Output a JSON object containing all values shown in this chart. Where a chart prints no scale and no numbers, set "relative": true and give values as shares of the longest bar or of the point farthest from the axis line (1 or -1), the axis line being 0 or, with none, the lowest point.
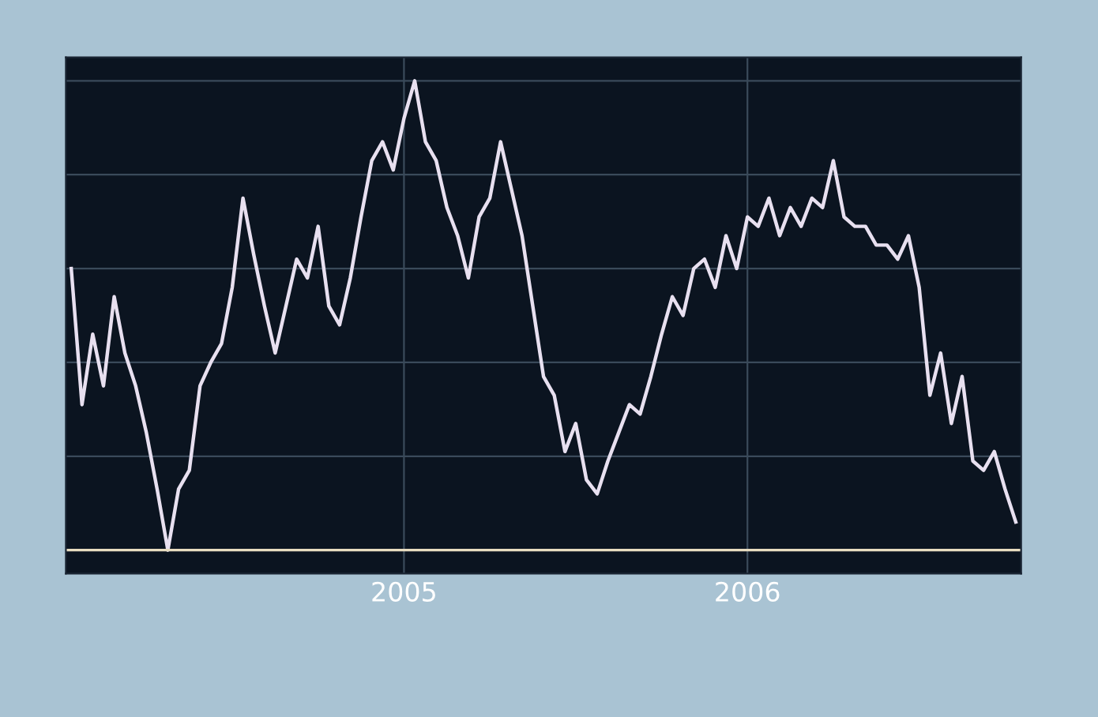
{
  "chart_data": {
    "type": "line",
    "relative": true,
    "grid": true,
    "categories": [
      null,
      null,
      null,
      null,
      null,
      null,
      null,
      null,
      null,
      null,
      null,
      null,
      null,
      null,
      null,
      null,
      null,
      null,
      null,
      null,
      null,
      null,
      null,
      null,
      null,
      null,
      null,
      null,
      null,
      null,
      null,
      "2005",
      null,
      null,
      null,
      null,
      null,
      null,
      null,
      null,
      null,
      null,
      null,
      null,
      null,
      null,
      null,
      null,
      null,
      null,
      null,
      null,
      null,
      null,
      null,
      null,
      null,
      null,
      null,
      null,
      null,
      null,
      null,
      "2006",
      null,
      null,
      null,
      null,
      null,
      null,
      null,
      null,
      null,
      null,
      null,
      null,
      null,
      null,
      null,
      null,
      null,
      null,
      null,
      null,
      null,
      null,
      null,
      null,
      null
    ],
    "series": [
      {
        "color": "#e8e0f0",
        "values": [
          0.6,
          0.31,
          0.46,
          0.35,
          0.54,
          0.42,
          0.35,
          0.25,
          0.13,
          0,
          0.13,
          0.17,
          0.35,
          0.4,
          0.44,
          0.56,
          0.75,
          0.63,
          0.52,
          0.42,
          0.52,
          0.62,
          0.58,
          0.69,
          0.52,
          0.48,
          0.58,
          0.71,
          0.83,
          0.87,
          0.81,
          0.92,
          1,
          0.87,
          0.83,
          0.73,
          0.67,
          0.58,
          0.71,
          0.75,
          0.87,
          0.77,
          0.67,
          0.52,
          0.37,
          0.33,
          0.21,
          0.27,
          0.15,
          0.12,
          0.19,
          0.25,
          0.31,
          0.29,
          0.37,
          0.46,
          0.54,
          0.5,
          0.6,
          0.62,
          0.56,
          0.67,
          0.6,
          0.71,
          0.69,
          0.75,
          0.67,
          0.73,
          0.69,
          0.75,
          0.73,
          0.83,
          0.71,
          0.69,
          0.69,
          0.65,
          0.65,
          0.62,
          0.67,
          0.56,
          0.33,
          0.42,
          0.27,
          0.37,
          0.19,
          0.17,
          0.21,
          0.13,
          0.06
        ]
      }
    ],
    "ref_lines": [
      {
        "axis": "y",
        "value": 0,
        "color": "#e8dcc0"
      }
    ]
  }
}
